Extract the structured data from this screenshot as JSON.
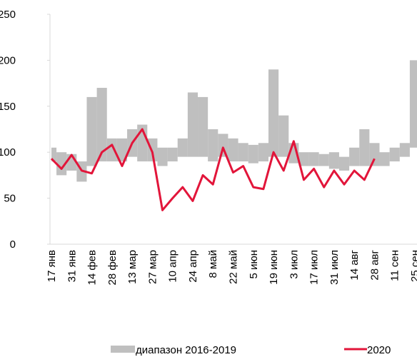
{
  "chart_data": {
    "type": "line",
    "categories": [
      "17 янв",
      null,
      "31 янв",
      null,
      "14 фев",
      null,
      "28 фев",
      null,
      "13 мар",
      null,
      "27 мар",
      null,
      "10 апр",
      null,
      "24 апр",
      null,
      "8 май",
      null,
      "22 май",
      null,
      "5 июн",
      null,
      "19 июн",
      null,
      "3 июл",
      null,
      "17 июл",
      null,
      "31 июл",
      null,
      "14 авг",
      null,
      "28 авг",
      null,
      "11 сен",
      null,
      "25 сен"
    ],
    "ylim": [
      0,
      250
    ],
    "yticks": [
      0,
      50,
      100,
      150,
      200,
      250
    ],
    "series": [
      {
        "name": "диапазон 2016-2019",
        "color": "#bfbfbf",
        "low": [
          90,
          75,
          80,
          68,
          85,
          90,
          90,
          90,
          95,
          90,
          90,
          85,
          90,
          95,
          95,
          95,
          90,
          95,
          90,
          90,
          88,
          90,
          95,
          95,
          88,
          85,
          85,
          85,
          82,
          80,
          85,
          85,
          85,
          85,
          90,
          95,
          105
        ],
        "high": [
          105,
          100,
          98,
          90,
          160,
          170,
          115,
          115,
          125,
          130,
          115,
          105,
          105,
          115,
          165,
          160,
          125,
          120,
          115,
          110,
          108,
          110,
          190,
          140,
          110,
          100,
          100,
          98,
          100,
          95,
          105,
          125,
          110,
          100,
          105,
          110,
          200
        ]
      },
      {
        "name": "2020",
        "color": "#e2153a",
        "values": [
          93,
          82,
          97,
          80,
          77,
          100,
          108,
          85,
          110,
          125,
          100,
          37,
          50,
          62,
          47,
          75,
          65,
          105,
          78,
          85,
          62,
          60,
          100,
          80,
          112,
          70,
          82,
          62,
          80,
          65,
          80,
          70,
          93,
          null,
          null,
          null,
          null
        ]
      }
    ]
  }
}
